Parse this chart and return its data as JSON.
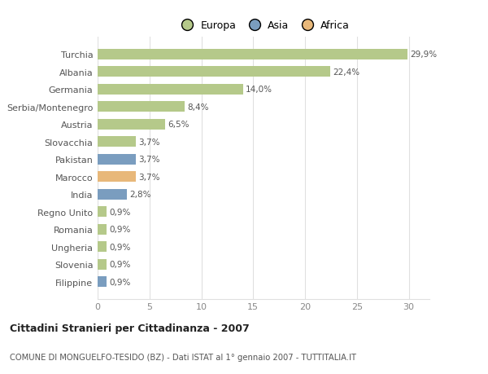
{
  "categories": [
    "Turchia",
    "Albania",
    "Germania",
    "Serbia/Montenegro",
    "Austria",
    "Slovacchia",
    "Pakistan",
    "Marocco",
    "India",
    "Regno Unito",
    "Romania",
    "Ungheria",
    "Slovenia",
    "Filippine"
  ],
  "values": [
    29.9,
    22.4,
    14.0,
    8.4,
    6.5,
    3.7,
    3.7,
    3.7,
    2.8,
    0.9,
    0.9,
    0.9,
    0.9,
    0.9
  ],
  "labels": [
    "29,9%",
    "22,4%",
    "14,0%",
    "8,4%",
    "6,5%",
    "3,7%",
    "3,7%",
    "3,7%",
    "2,8%",
    "0,9%",
    "0,9%",
    "0,9%",
    "0,9%",
    "0,9%"
  ],
  "colors": [
    "#b5c98a",
    "#b5c98a",
    "#b5c98a",
    "#b5c98a",
    "#b5c98a",
    "#b5c98a",
    "#7a9dbf",
    "#e8b87a",
    "#7a9dbf",
    "#b5c98a",
    "#b5c98a",
    "#b5c98a",
    "#b5c98a",
    "#7a9dbf"
  ],
  "legend_labels": [
    "Europa",
    "Asia",
    "Africa"
  ],
  "legend_colors": [
    "#b5c98a",
    "#7a9dbf",
    "#e8b87a"
  ],
  "title": "Cittadini Stranieri per Cittadinanza - 2007",
  "subtitle": "COMUNE DI MONGUELFO-TESIDO (BZ) - Dati ISTAT al 1° gennaio 2007 - TUTTITALIA.IT",
  "xlim": [
    0,
    32
  ],
  "xticks": [
    0,
    5,
    10,
    15,
    20,
    25,
    30
  ],
  "bg_color": "#ffffff",
  "grid_color": "#e0e0e0",
  "bar_height": 0.6
}
